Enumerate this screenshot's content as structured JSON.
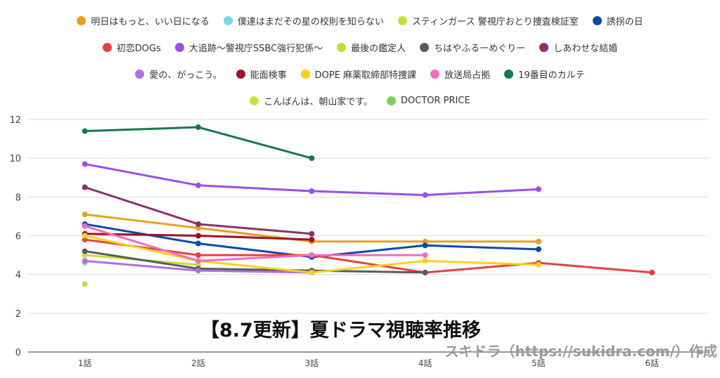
{
  "chart_data": {
    "type": "line",
    "categories": [
      "1話",
      "2話",
      "3話",
      "4話",
      "5話",
      "6話"
    ],
    "ylim": [
      0,
      12
    ],
    "yticks": [
      0,
      2,
      4,
      6,
      8,
      10,
      12
    ],
    "grid": true,
    "legend_position": "top",
    "series": [
      {
        "name": "明日はもっと、いい日になる",
        "color": "#e8a020",
        "values": [
          7.1,
          6.4,
          5.7,
          5.7,
          5.7,
          null
        ]
      },
      {
        "name": "僕達はまだその星の校則を知らない",
        "color": "#7fd6f0",
        "values": [
          4.6,
          null,
          null,
          null,
          null,
          null
        ]
      },
      {
        "name": "スティンガース 警視庁おとり捜査検証室",
        "color": "#c8dc3c",
        "values": [
          5.0,
          4.5,
          null,
          null,
          null,
          null
        ]
      },
      {
        "name": "誘拐の日",
        "color": "#0a4aa8",
        "values": [
          6.6,
          5.6,
          4.9,
          5.5,
          5.3,
          null
        ]
      },
      {
        "name": "初恋DOGs",
        "color": "#e84040",
        "values": [
          5.8,
          5.0,
          5.0,
          4.1,
          4.6,
          4.1
        ]
      },
      {
        "name": "大追跡〜警視庁SSBC強行犯係〜",
        "color": "#9a4ee8",
        "values": [
          9.7,
          8.6,
          8.3,
          8.1,
          8.4,
          null
        ]
      },
      {
        "name": "最後の鑑定人",
        "color": "#c0dd3a",
        "values": [
          3.5,
          null,
          null,
          null,
          null,
          null
        ]
      },
      {
        "name": "ちはやふるーめぐりー",
        "color": "#5a5a5a",
        "values": [
          5.2,
          4.3,
          4.2,
          4.1,
          null,
          null
        ]
      },
      {
        "name": "しあわせな結婚",
        "color": "#8a2f6e",
        "values": [
          8.5,
          6.6,
          6.1,
          null,
          null,
          null
        ]
      },
      {
        "name": "愛の、がっこう。",
        "color": "#b06ee0",
        "values": [
          4.7,
          4.2,
          4.1,
          null,
          null,
          null
        ]
      },
      {
        "name": "能面検事",
        "color": "#a0102a",
        "values": [
          6.1,
          6.0,
          5.8,
          null,
          null,
          null
        ]
      },
      {
        "name": "DOPE 麻薬取締部特捜課",
        "color": "#f7d21c",
        "values": [
          6.0,
          4.7,
          4.1,
          4.7,
          4.5,
          null
        ]
      },
      {
        "name": "放送局占拠",
        "color": "#f06bc0",
        "values": [
          6.5,
          4.7,
          5.0,
          5.0,
          null,
          null
        ]
      },
      {
        "name": "19番目のカルテ",
        "color": "#16784a",
        "values": [
          11.4,
          11.6,
          10.0,
          null,
          null,
          null
        ]
      },
      {
        "name": "こんばんは、朝山家です。",
        "color": "#cfe23c",
        "values": [
          null,
          null,
          null,
          null,
          null,
          null
        ]
      },
      {
        "name": "DOCTOR PRICE",
        "color": "#7dd060",
        "values": [
          null,
          null,
          null,
          null,
          null,
          null
        ]
      }
    ],
    "legend_rows": [
      [
        0,
        1,
        2,
        3
      ],
      [
        4,
        5,
        6,
        7,
        8
      ],
      [
        9,
        10,
        11,
        12,
        13
      ],
      [
        14,
        15
      ]
    ],
    "overlay_title": "【8.7更新】夏ドラマ視聴率推移",
    "watermark": "スキドラ（https://sukidra.com/）作成"
  }
}
